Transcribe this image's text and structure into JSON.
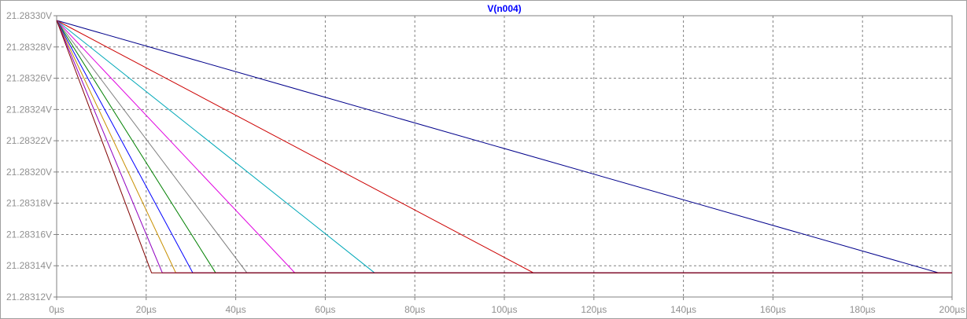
{
  "chart_data": {
    "type": "line",
    "title": "V(n004)",
    "xlabel": "",
    "ylabel": "",
    "xlim": [
      0,
      200
    ],
    "ylim": [
      21.28312,
      21.2833
    ],
    "x_ticks": [
      0,
      20,
      40,
      60,
      80,
      100,
      120,
      140,
      160,
      180,
      200
    ],
    "x_tick_labels": [
      "0µs",
      "20µs",
      "40µs",
      "60µs",
      "80µs",
      "100µs",
      "120µs",
      "140µs",
      "160µs",
      "180µs",
      "200µs"
    ],
    "y_ticks": [
      21.2833,
      21.28328,
      21.28326,
      21.28324,
      21.28322,
      21.2832,
      21.28318,
      21.28316,
      21.28314,
      21.28312
    ],
    "y_tick_labels": [
      "21.28330V",
      "21.28328V",
      "21.28326V",
      "21.28324V",
      "21.28322V",
      "21.28320V",
      "21.28318V",
      "21.28316V",
      "21.28314V",
      "21.28312V"
    ],
    "grid": true,
    "title_color": "#0000ff",
    "series": [
      {
        "color": "#00008b",
        "x": [
          0,
          197,
          200
        ],
        "y": [
          21.283297,
          21.2831355,
          21.2831355
        ]
      },
      {
        "color": "#cc0000",
        "x": [
          0,
          106.5,
          200
        ],
        "y": [
          21.283297,
          21.2831355,
          21.2831355
        ]
      },
      {
        "color": "#00a8b8",
        "x": [
          0,
          71,
          200
        ],
        "y": [
          21.283297,
          21.2831355,
          21.2831355
        ]
      },
      {
        "color": "#e000e0",
        "x": [
          0,
          53.2,
          200
        ],
        "y": [
          21.283297,
          21.2831355,
          21.2831355
        ]
      },
      {
        "color": "#808080",
        "x": [
          0,
          42.5,
          200
        ],
        "y": [
          21.283297,
          21.2831355,
          21.2831355
        ]
      },
      {
        "color": "#008000",
        "x": [
          0,
          35.5,
          200
        ],
        "y": [
          21.283297,
          21.2831355,
          21.2831355
        ]
      },
      {
        "color": "#0000ff",
        "x": [
          0,
          30.4,
          200
        ],
        "y": [
          21.283297,
          21.2831355,
          21.2831355
        ]
      },
      {
        "color": "#c89000",
        "x": [
          0,
          26.6,
          200
        ],
        "y": [
          21.283297,
          21.2831355,
          21.2831355
        ]
      },
      {
        "color": "#9000c0",
        "x": [
          0,
          23.6,
          200
        ],
        "y": [
          21.283297,
          21.2831355,
          21.2831355
        ]
      },
      {
        "color": "#800000",
        "x": [
          0,
          21.2,
          200
        ],
        "y": [
          21.283297,
          21.2831355,
          21.2831355
        ]
      }
    ]
  }
}
